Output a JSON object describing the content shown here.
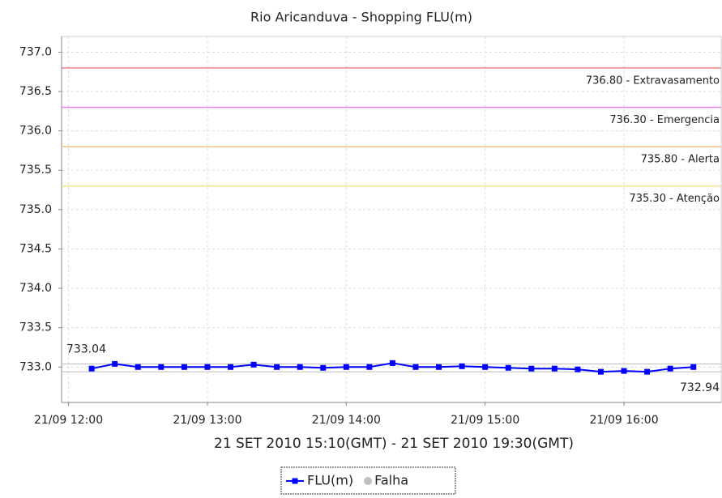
{
  "chart_data": {
    "type": "line",
    "title": "Rio Aricanduva - Shopping FLU(m)",
    "x_label": "21 SET 2010 15:10(GMT) - 21 SET 2010 19:30(GMT)",
    "x": [
      "21/09 12:10",
      "21/09 12:20",
      "21/09 12:30",
      "21/09 12:40",
      "21/09 12:50",
      "21/09 13:00",
      "21/09 13:10",
      "21/09 13:20",
      "21/09 13:30",
      "21/09 13:40",
      "21/09 13:50",
      "21/09 14:00",
      "21/09 14:10",
      "21/09 14:20",
      "21/09 14:30",
      "21/09 14:40",
      "21/09 14:50",
      "21/09 15:00",
      "21/09 15:10",
      "21/09 15:20",
      "21/09 15:30",
      "21/09 15:40",
      "21/09 15:50",
      "21/09 16:00",
      "21/09 16:10",
      "21/09 16:20",
      "21/09 16:30"
    ],
    "series": [
      {
        "name": "FLU(m)",
        "color": "#0000ff",
        "values": [
          732.98,
          733.04,
          733.0,
          733.0,
          733.0,
          733.0,
          733.0,
          733.03,
          733.0,
          733.0,
          732.99,
          733.0,
          733.0,
          733.05,
          733.0,
          733.0,
          733.01,
          733.0,
          732.99,
          732.98,
          732.98,
          732.97,
          732.94,
          732.95,
          732.94,
          732.98,
          733.0
        ],
        "value_labels": [
          null,
          "733.04",
          null,
          null,
          null,
          null,
          null,
          null,
          null,
          null,
          null,
          null,
          null,
          null,
          null,
          null,
          null,
          null,
          null,
          null,
          null,
          null,
          null,
          null,
          "732.94",
          null,
          null
        ]
      },
      {
        "name": "Falha",
        "color": "#c0c0c0",
        "values": [
          null,
          null,
          null,
          null,
          null,
          null,
          null,
          null,
          null,
          null,
          null,
          null,
          null,
          null,
          null,
          null,
          null,
          null,
          null,
          null,
          null,
          null,
          null,
          null,
          null,
          null,
          null
        ]
      }
    ],
    "thresholds": [
      {
        "value": 736.8,
        "label": "736.80 - Extravasamento",
        "color": "#f08080"
      },
      {
        "value": 736.3,
        "label": "736.30 - Emergencia",
        "color": "#ee82ee"
      },
      {
        "value": 735.8,
        "label": "735.80 - Alerta",
        "color": "#f5c080"
      },
      {
        "value": 735.3,
        "label": "735.30 - Atenção",
        "color": "#f5e08a"
      }
    ],
    "xlim": [
      "21/09 11:57",
      "21/09 16:42"
    ],
    "xticks": [
      "21/09 12:00",
      "21/09 13:00",
      "21/09 14:00",
      "21/09 15:00",
      "21/09 16:00"
    ],
    "ylim": [
      732.55,
      737.2
    ],
    "yticks": [
      {
        "value": 733,
        "label": "733.0"
      },
      733.5,
      {
        "value": 734,
        "label": "734.0"
      },
      734.5,
      {
        "value": 735,
        "label": "735.0"
      },
      735.5,
      {
        "value": 736,
        "label": "736.0"
      },
      736.5,
      {
        "value": 737,
        "label": "737.0"
      }
    ],
    "grid": true
  }
}
